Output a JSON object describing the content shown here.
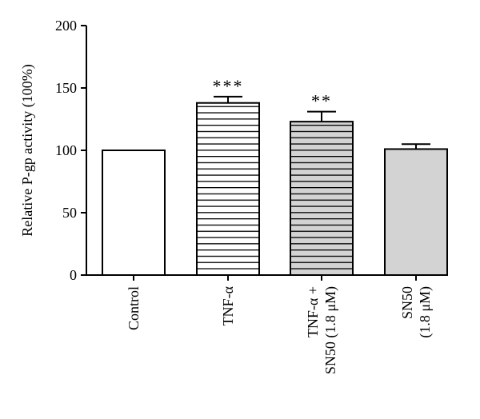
{
  "chart_data": {
    "type": "bar",
    "title": "",
    "xlabel": "",
    "ylabel": "Relative P-gp activity (100%)",
    "ylim": [
      0,
      200
    ],
    "yticks": [
      0,
      50,
      100,
      150,
      200
    ],
    "grid": false,
    "legend": "none",
    "categories": [
      [
        "Control"
      ],
      [
        "TNF-α"
      ],
      [
        "TNF-α +",
        "SN50 (1.8 μM)"
      ],
      [
        "SN50",
        "(1.8 μM)"
      ]
    ],
    "values": [
      100,
      138,
      123,
      101
    ],
    "errors": [
      0,
      5,
      8,
      4
    ],
    "significance": [
      "",
      "***",
      "**",
      ""
    ],
    "fills": [
      "white",
      "horizontal-stripes",
      "gray-horizontal-stripes",
      "light-gray"
    ],
    "colors": {
      "axis": "#000000",
      "stripe": "#000000",
      "bar_gray": "#d3d3d3",
      "background": "#ffffff"
    }
  }
}
